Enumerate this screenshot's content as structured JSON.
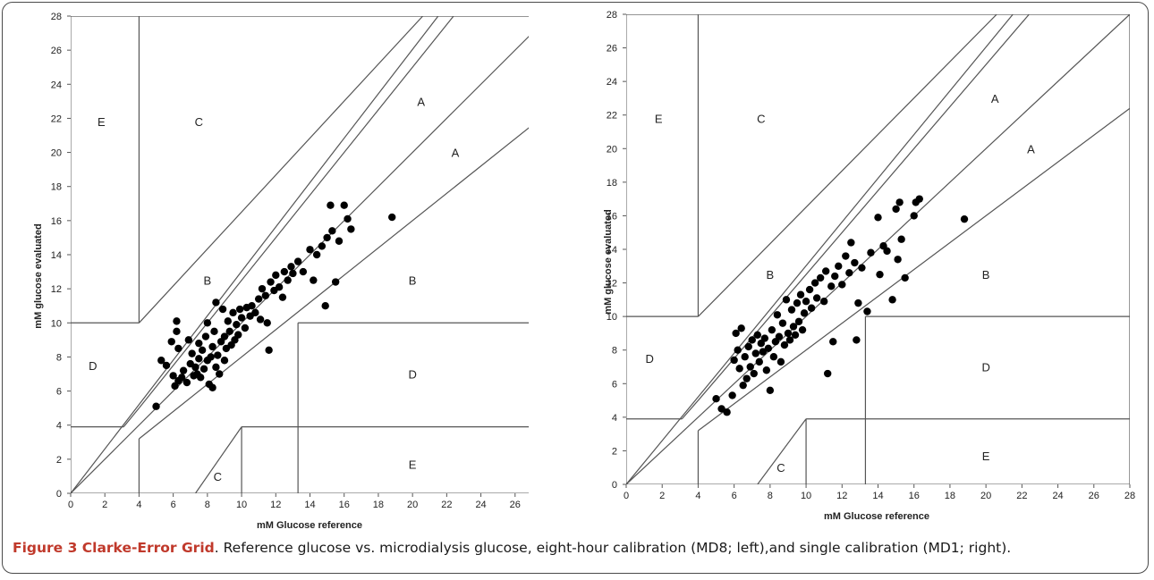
{
  "colors": {
    "lines": "#555555",
    "points": "#000000",
    "figure_label": "#c0392b"
  },
  "caption": {
    "label": "Figure 3 Clarke-Error Grid",
    "text": ". Reference glucose vs. microdialysis glucose, eight-hour calibration (MD8; left),and single calibration (MD1; right)."
  },
  "chart_data": [
    {
      "type": "scatter",
      "xlabel": "mM Glucose reference",
      "ylabel": "mM glucose evaluated",
      "xlim": [
        0,
        28
      ],
      "ylim": [
        0,
        28
      ],
      "x_ticks": [
        "0",
        "2",
        "4",
        "6",
        "8",
        "10",
        "12",
        "14",
        "16",
        "18",
        "20",
        "22",
        "24",
        "26"
      ],
      "y_ticks": [
        "0",
        "2",
        "4",
        "6",
        "8",
        "10",
        "12",
        "14",
        "16",
        "18",
        "20",
        "22",
        "24",
        "26",
        "28"
      ],
      "region_labels": [
        {
          "text": "A",
          "x": 20.5,
          "y": 23
        },
        {
          "text": "A",
          "x": 22.5,
          "y": 20
        },
        {
          "text": "B",
          "x": 8,
          "y": 12.5
        },
        {
          "text": "B",
          "x": 20,
          "y": 12.5
        },
        {
          "text": "C",
          "x": 7.5,
          "y": 21.8
        },
        {
          "text": "C",
          "x": 8.6,
          "y": 1
        },
        {
          "text": "D",
          "x": 1.3,
          "y": 7.5
        },
        {
          "text": "D",
          "x": 20,
          "y": 7
        },
        {
          "text": "E",
          "x": 1.8,
          "y": 21.8
        },
        {
          "text": "E",
          "x": 20,
          "y": 1.7
        }
      ],
      "points": [
        [
          5.0,
          5.1
        ],
        [
          5.3,
          7.8
        ],
        [
          5.6,
          7.5
        ],
        [
          5.9,
          8.9
        ],
        [
          6.0,
          6.9
        ],
        [
          6.1,
          6.3
        ],
        [
          6.2,
          10.1
        ],
        [
          6.2,
          9.5
        ],
        [
          6.3,
          8.5
        ],
        [
          6.3,
          6.6
        ],
        [
          6.5,
          6.8
        ],
        [
          6.6,
          7.2
        ],
        [
          6.8,
          6.5
        ],
        [
          6.9,
          9.0
        ],
        [
          7.0,
          7.6
        ],
        [
          7.1,
          8.2
        ],
        [
          7.2,
          6.9
        ],
        [
          7.3,
          7.4
        ],
        [
          7.4,
          7.0
        ],
        [
          7.5,
          8.8
        ],
        [
          7.5,
          7.9
        ],
        [
          7.6,
          6.8
        ],
        [
          7.7,
          8.4
        ],
        [
          7.8,
          7.3
        ],
        [
          7.9,
          9.2
        ],
        [
          8.0,
          7.8
        ],
        [
          8.0,
          10.0
        ],
        [
          8.1,
          6.4
        ],
        [
          8.2,
          8.0
        ],
        [
          8.3,
          8.6
        ],
        [
          8.3,
          6.2
        ],
        [
          8.4,
          9.5
        ],
        [
          8.5,
          7.4
        ],
        [
          8.5,
          11.2
        ],
        [
          8.6,
          8.1
        ],
        [
          8.7,
          7.0
        ],
        [
          8.8,
          8.9
        ],
        [
          8.9,
          10.8
        ],
        [
          9.0,
          9.2
        ],
        [
          9.0,
          7.8
        ],
        [
          9.1,
          8.5
        ],
        [
          9.2,
          10.1
        ],
        [
          9.3,
          9.5
        ],
        [
          9.4,
          8.7
        ],
        [
          9.5,
          10.6
        ],
        [
          9.6,
          9.0
        ],
        [
          9.7,
          9.9
        ],
        [
          9.8,
          9.3
        ],
        [
          9.9,
          10.8
        ],
        [
          10.0,
          10.3
        ],
        [
          10.2,
          9.7
        ],
        [
          10.3,
          10.9
        ],
        [
          10.5,
          10.4
        ],
        [
          10.6,
          11.0
        ],
        [
          10.8,
          10.6
        ],
        [
          11.0,
          11.4
        ],
        [
          11.1,
          10.2
        ],
        [
          11.2,
          12.0
        ],
        [
          11.4,
          11.6
        ],
        [
          11.5,
          10.0
        ],
        [
          11.6,
          8.4
        ],
        [
          11.7,
          12.4
        ],
        [
          11.9,
          11.9
        ],
        [
          12.0,
          12.8
        ],
        [
          12.2,
          12.1
        ],
        [
          12.4,
          11.5
        ],
        [
          12.5,
          13.0
        ],
        [
          12.7,
          12.5
        ],
        [
          12.9,
          13.3
        ],
        [
          13.0,
          12.9
        ],
        [
          13.3,
          13.6
        ],
        [
          13.6,
          13.0
        ],
        [
          14.0,
          14.3
        ],
        [
          14.2,
          12.5
        ],
        [
          14.4,
          14.0
        ],
        [
          14.7,
          14.5
        ],
        [
          14.9,
          11.0
        ],
        [
          15.0,
          15.0
        ],
        [
          15.2,
          16.9
        ],
        [
          15.3,
          15.4
        ],
        [
          15.5,
          12.4
        ],
        [
          15.7,
          14.8
        ],
        [
          16.0,
          16.9
        ],
        [
          16.2,
          16.1
        ],
        [
          16.4,
          15.5
        ],
        [
          18.8,
          16.2
        ]
      ]
    },
    {
      "type": "scatter",
      "xlabel": "mM Glucose reference",
      "ylabel": "mM glucose evaluated",
      "xlim": [
        0,
        28
      ],
      "ylim": [
        0,
        28
      ],
      "x_ticks": [
        "0",
        "2",
        "4",
        "6",
        "8",
        "10",
        "12",
        "14",
        "16",
        "18",
        "20",
        "22",
        "24",
        "26",
        "28"
      ],
      "y_ticks": [
        "0",
        "2",
        "4",
        "6",
        "8",
        "10",
        "12",
        "14",
        "16",
        "18",
        "20",
        "22",
        "24",
        "26",
        "28"
      ],
      "region_labels": [
        {
          "text": "A",
          "x": 20.5,
          "y": 23
        },
        {
          "text": "A",
          "x": 22.5,
          "y": 20
        },
        {
          "text": "B",
          "x": 8,
          "y": 12.5
        },
        {
          "text": "B",
          "x": 20,
          "y": 12.5
        },
        {
          "text": "C",
          "x": 7.5,
          "y": 21.8
        },
        {
          "text": "C",
          "x": 8.6,
          "y": 1
        },
        {
          "text": "D",
          "x": 1.3,
          "y": 7.5
        },
        {
          "text": "D",
          "x": 20,
          "y": 7
        },
        {
          "text": "E",
          "x": 1.8,
          "y": 21.8
        },
        {
          "text": "E",
          "x": 20,
          "y": 1.7
        }
      ],
      "points": [
        [
          5.0,
          5.1
        ],
        [
          5.3,
          4.5
        ],
        [
          5.6,
          4.3
        ],
        [
          5.9,
          5.3
        ],
        [
          6.0,
          7.4
        ],
        [
          6.1,
          9.0
        ],
        [
          6.2,
          8.0
        ],
        [
          6.3,
          6.9
        ],
        [
          6.4,
          9.3
        ],
        [
          6.5,
          5.9
        ],
        [
          6.6,
          7.6
        ],
        [
          6.7,
          6.3
        ],
        [
          6.8,
          8.2
        ],
        [
          6.9,
          7.0
        ],
        [
          7.0,
          8.6
        ],
        [
          7.1,
          6.6
        ],
        [
          7.2,
          7.8
        ],
        [
          7.3,
          8.9
        ],
        [
          7.4,
          7.3
        ],
        [
          7.5,
          8.4
        ],
        [
          7.6,
          7.9
        ],
        [
          7.7,
          8.7
        ],
        [
          7.8,
          6.8
        ],
        [
          7.9,
          8.1
        ],
        [
          8.0,
          5.6
        ],
        [
          8.1,
          9.2
        ],
        [
          8.2,
          7.6
        ],
        [
          8.3,
          8.5
        ],
        [
          8.4,
          10.1
        ],
        [
          8.5,
          8.8
        ],
        [
          8.6,
          7.3
        ],
        [
          8.7,
          9.6
        ],
        [
          8.8,
          8.3
        ],
        [
          8.9,
          11.0
        ],
        [
          9.0,
          9.0
        ],
        [
          9.1,
          8.6
        ],
        [
          9.2,
          10.4
        ],
        [
          9.3,
          9.4
        ],
        [
          9.4,
          8.9
        ],
        [
          9.5,
          10.8
        ],
        [
          9.6,
          9.7
        ],
        [
          9.7,
          11.3
        ],
        [
          9.8,
          9.2
        ],
        [
          9.9,
          10.2
        ],
        [
          10.0,
          10.9
        ],
        [
          10.2,
          11.6
        ],
        [
          10.3,
          10.5
        ],
        [
          10.5,
          12.0
        ],
        [
          10.6,
          11.1
        ],
        [
          10.8,
          12.3
        ],
        [
          11.0,
          10.9
        ],
        [
          11.1,
          12.7
        ],
        [
          11.2,
          6.6
        ],
        [
          11.4,
          11.8
        ],
        [
          11.5,
          8.5
        ],
        [
          11.6,
          12.4
        ],
        [
          11.8,
          13.0
        ],
        [
          12.0,
          11.9
        ],
        [
          12.2,
          13.6
        ],
        [
          12.4,
          12.6
        ],
        [
          12.5,
          14.4
        ],
        [
          12.7,
          13.2
        ],
        [
          12.8,
          8.6
        ],
        [
          12.9,
          10.8
        ],
        [
          13.1,
          12.9
        ],
        [
          13.4,
          10.3
        ],
        [
          13.6,
          13.8
        ],
        [
          14.0,
          15.9
        ],
        [
          14.1,
          12.5
        ],
        [
          14.3,
          14.2
        ],
        [
          14.5,
          13.9
        ],
        [
          14.8,
          11.0
        ],
        [
          15.0,
          16.4
        ],
        [
          15.1,
          13.4
        ],
        [
          15.2,
          16.8
        ],
        [
          15.3,
          14.6
        ],
        [
          15.5,
          12.3
        ],
        [
          16.0,
          16.0
        ],
        [
          16.1,
          16.8
        ],
        [
          16.3,
          17.0
        ],
        [
          18.8,
          15.8
        ]
      ]
    }
  ]
}
